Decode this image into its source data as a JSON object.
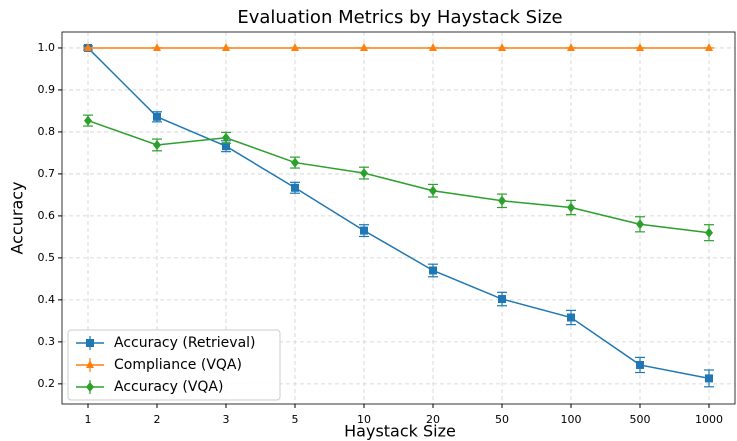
{
  "chart_data": {
    "type": "line",
    "title": "Evaluation Metrics by Haystack Size",
    "xlabel": "Haystack Size",
    "ylabel": "Accuracy",
    "categories": [
      "1",
      "2",
      "3",
      "5",
      "10",
      "20",
      "50",
      "100",
      "500",
      "1000"
    ],
    "series": [
      {
        "name": "Accuracy (Retrieval)",
        "color": "#1f77b4",
        "marker": "square",
        "values": [
          1.0,
          0.836,
          0.766,
          0.667,
          0.565,
          0.47,
          0.402,
          0.358,
          0.245,
          0.213
        ],
        "errors": [
          0.005,
          0.012,
          0.013,
          0.013,
          0.014,
          0.015,
          0.016,
          0.017,
          0.018,
          0.02
        ]
      },
      {
        "name": "Compliance (VQA)",
        "color": "#ff7f0e",
        "marker": "triangle",
        "values": [
          1.0,
          1.0,
          1.0,
          1.0,
          1.0,
          1.0,
          1.0,
          1.0,
          1.0,
          1.0
        ],
        "errors": [
          0,
          0,
          0,
          0,
          0,
          0,
          0,
          0,
          0,
          0
        ]
      },
      {
        "name": "Accuracy (VQA)",
        "color": "#2ca02c",
        "marker": "diamond",
        "values": [
          0.827,
          0.769,
          0.786,
          0.727,
          0.702,
          0.66,
          0.636,
          0.62,
          0.58,
          0.56
        ],
        "errors": [
          0.013,
          0.014,
          0.013,
          0.013,
          0.014,
          0.015,
          0.016,
          0.017,
          0.018,
          0.019
        ]
      }
    ],
    "ylim": [
      0.152,
      1.038
    ],
    "yticks": [
      0.2,
      0.3,
      0.4,
      0.5,
      0.6,
      0.7,
      0.8,
      0.9,
      {
        "value": 1,
        "label": "1.0"
      }
    ],
    "grid": true,
    "legend": "lower left"
  }
}
